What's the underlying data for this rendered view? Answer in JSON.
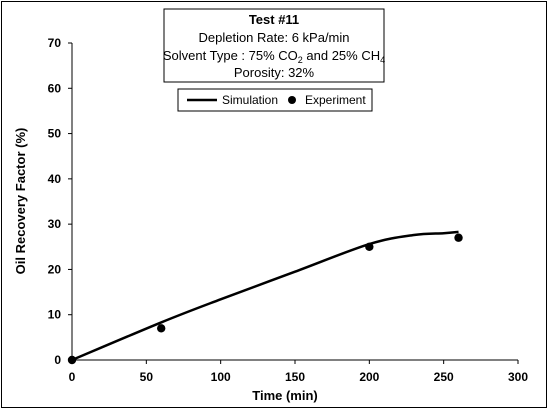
{
  "chart_data": {
    "type": "line",
    "info_box": {
      "title": "Test #11",
      "line_depletion": "Depletion Rate: 6 kPa/min",
      "solvent_prefix": "Solvent Type : 75% CO",
      "solvent_mid": " and 25% CH",
      "sub_2": "2",
      "sub_4": "4",
      "line_porosity": "Porosity: 32%"
    },
    "xlabel": "Time (min)",
    "ylabel": "Oil Recovery Factor (%)",
    "xlim": [
      0,
      300
    ],
    "ylim": [
      0,
      70
    ],
    "x_ticks": [
      "0",
      "50",
      "100",
      "150",
      "200",
      "250",
      "300"
    ],
    "y_ticks": [
      "0",
      "10",
      "20",
      "30",
      "40",
      "50",
      "60",
      "70"
    ],
    "grid": false,
    "legend_position": "top-center",
    "series": [
      {
        "name": "Simulation",
        "style": "line",
        "color": "#000000",
        "points": [
          [
            0,
            0
          ],
          [
            60,
            8.3
          ],
          [
            100,
            13.4
          ],
          [
            150,
            19.5
          ],
          [
            200,
            25.6
          ],
          [
            230,
            27.6
          ],
          [
            250,
            28.0
          ],
          [
            260,
            28.3
          ]
        ]
      },
      {
        "name": "Experiment",
        "style": "marker",
        "color": "#000000",
        "points": [
          [
            0,
            0
          ],
          [
            60,
            7.0
          ],
          [
            200,
            25.0
          ],
          [
            260,
            27.0
          ]
        ]
      }
    ]
  }
}
